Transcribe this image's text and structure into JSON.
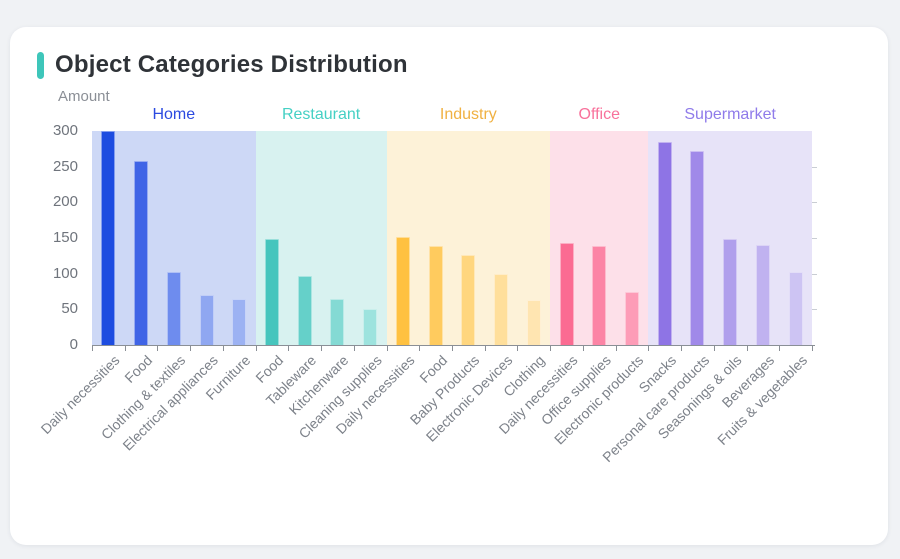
{
  "page": {
    "background": "#f0f2f5",
    "card_background": "#ffffff"
  },
  "header": {
    "title": "Object Categories Distribution",
    "accent_color": "#3ec6ba",
    "title_color": "#2f3338"
  },
  "chart_data": {
    "type": "bar",
    "title": "Object Categories Distribution",
    "xlabel": "",
    "ylabel": "Amount",
    "ylim": [
      0,
      300
    ],
    "yticks": [
      0,
      50,
      100,
      150,
      200,
      250,
      300
    ],
    "grid": false,
    "legend_position": "none",
    "axis_color": "#8a8f96",
    "tick_label_color": "#6f747c",
    "category_label_color": "#7d828a",
    "groups": [
      {
        "name": "Home",
        "label_color": "#2b4ae0",
        "band_color": "#cdd8f6",
        "categories": [
          "Daily necessities",
          "Food",
          "Clothing & textiles",
          "Electrical appliances",
          "Furniture"
        ],
        "values": [
          300,
          258,
          103,
          70,
          65
        ],
        "bar_colors": [
          "#1d4ce0",
          "#3f64e6",
          "#6e8cee",
          "#8fa7f1",
          "#9cb2f3"
        ]
      },
      {
        "name": "Restaurant",
        "label_color": "#45d0c4",
        "band_color": "#d8f2f0",
        "categories": [
          "Food",
          "Tableware",
          "Kitchenware",
          "Cleaning supplies"
        ],
        "values": [
          149,
          97,
          65,
          51
        ],
        "bar_colors": [
          "#46c5bd",
          "#65d0c9",
          "#84dad4",
          "#9de3de"
        ]
      },
      {
        "name": "Industry",
        "label_color": "#f0b142",
        "band_color": "#fdf2d8",
        "categories": [
          "Daily necessities",
          "Food",
          "Baby Products",
          "Electronic Devices",
          "Clothing"
        ],
        "values": [
          151,
          139,
          126,
          100,
          63
        ],
        "bar_colors": [
          "#ffc140",
          "#ffcb5e",
          "#ffd67e",
          "#ffdf9b",
          "#ffe5b1"
        ]
      },
      {
        "name": "Office",
        "label_color": "#f8719b",
        "band_color": "#fde0e9",
        "categories": [
          "Daily necessities",
          "Office supplies",
          "Electronic products"
        ],
        "values": [
          143,
          139,
          75
        ],
        "bar_colors": [
          "#fb6b92",
          "#fc84a5",
          "#fd9cb7"
        ]
      },
      {
        "name": "Supermarket",
        "label_color": "#8f7bea",
        "band_color": "#e7e3f8",
        "categories": [
          "Snacks",
          "Personal care products",
          "Seasonings & oils",
          "Beverages",
          "Fruits & vegetables"
        ],
        "values": [
          285,
          272,
          149,
          140,
          102
        ],
        "bar_colors": [
          "#8e74e5",
          "#a089e9",
          "#b09fec",
          "#c0b2f0",
          "#cdc4f3"
        ]
      }
    ]
  }
}
